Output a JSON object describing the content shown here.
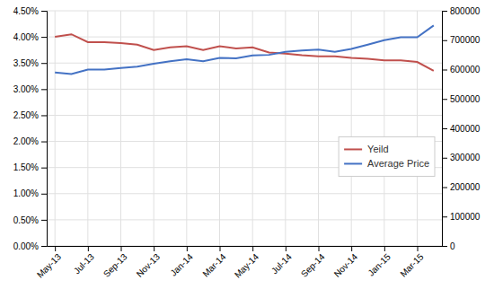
{
  "chart_data": {
    "type": "line",
    "categories": [
      "May-13",
      null,
      "Jul-13",
      null,
      "Sep-13",
      null,
      "Nov-13",
      null,
      "Jan-14",
      null,
      "Mar-14",
      null,
      "May-14",
      null,
      "Jul-14",
      null,
      "Sep-14",
      null,
      "Nov-14",
      null,
      "Jan-15",
      null,
      "Mar-15",
      null
    ],
    "series": [
      {
        "name": "Yeild",
        "color": "#C0504D",
        "values": [
          0.04,
          0.0405,
          0.039,
          0.039,
          0.0388,
          0.0385,
          0.0375,
          0.038,
          0.0382,
          0.0375,
          0.0382,
          0.0378,
          0.038,
          0.037,
          0.0368,
          0.0365,
          0.0363,
          0.0363,
          0.036,
          0.0358,
          0.0355,
          0.0355,
          0.0352,
          0.0335
        ]
      },
      {
        "name": "Average Price",
        "color": "#4472C4",
        "axis": "y2",
        "values": [
          590000,
          585000,
          600000,
          600000,
          605000,
          610000,
          620000,
          628000,
          635000,
          628000,
          640000,
          638000,
          648000,
          650000,
          660000,
          665000,
          668000,
          660000,
          670000,
          685000,
          700000,
          710000,
          710000,
          750000
        ]
      }
    ],
    "ylim": [
      0.0,
      0.045
    ],
    "yticks": [
      {
        "value": 0.0,
        "label": "0.00%"
      },
      {
        "value": 0.005,
        "label": "0.50%"
      },
      {
        "value": 0.01,
        "label": "1.00%"
      },
      {
        "value": 0.015,
        "label": "1.50%"
      },
      {
        "value": 0.02,
        "label": "2.00%"
      },
      {
        "value": 0.025,
        "label": "2.50%"
      },
      {
        "value": 0.03,
        "label": "3.00%"
      },
      {
        "value": 0.035,
        "label": "3.50%"
      },
      {
        "value": 0.04,
        "label": "4.00%"
      },
      {
        "value": 0.045,
        "label": "4.50%"
      }
    ],
    "y2lim": [
      0,
      800000
    ],
    "y2ticks": [
      0,
      100000,
      200000,
      300000,
      400000,
      500000,
      600000,
      700000,
      800000
    ],
    "grid": true,
    "legend": "right"
  }
}
